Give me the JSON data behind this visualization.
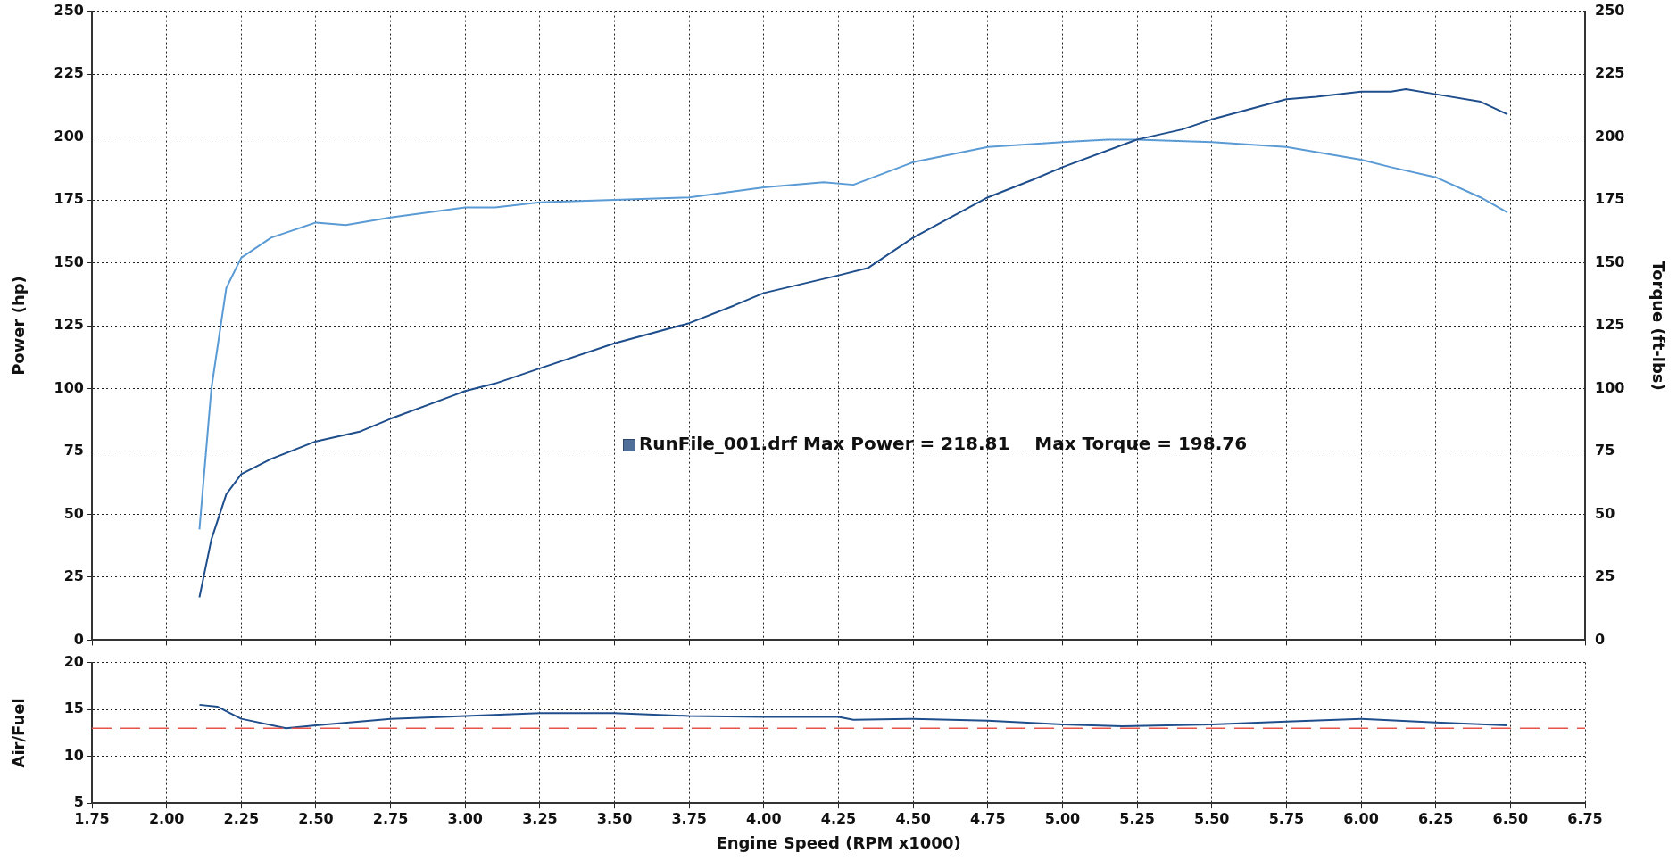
{
  "chart_data": [
    {
      "type": "line",
      "ylabel": "Power (hp)",
      "y2label": "Torque (ft-lbs)",
      "xlim": [
        1.75,
        6.75
      ],
      "xticks": [
        1.75,
        2,
        2.25,
        2.5,
        2.75,
        3,
        3.25,
        3.5,
        3.75,
        4,
        4.25,
        4.5,
        4.75,
        5,
        5.25,
        5.5,
        5.75,
        6,
        6.25,
        6.5,
        6.75
      ],
      "ylim": [
        0,
        250
      ],
      "yticks": [
        0,
        25,
        50,
        75,
        100,
        125,
        150,
        175,
        200,
        225,
        250
      ],
      "y2lim": [
        0,
        250
      ],
      "y2ticks": [
        0,
        25,
        50,
        75,
        100,
        125,
        150,
        175,
        200,
        225,
        250
      ],
      "tick_labels": "y",
      "grid": true,
      "legend": false,
      "marker": "none",
      "line_style": "solid",
      "series": [
        {
          "color": "#1f4e8c",
          "x": [
            2.11,
            2.15,
            2.2,
            2.25,
            2.35,
            2.5,
            2.65,
            2.75,
            3.0,
            3.1,
            3.25,
            3.5,
            3.75,
            3.9,
            4.0,
            4.25,
            4.35,
            4.5,
            4.75,
            4.9,
            5.0,
            5.25,
            5.4,
            5.5,
            5.75,
            5.85,
            6.0,
            6.1,
            6.15,
            6.25,
            6.4,
            6.49
          ],
          "values": [
            17,
            40,
            58,
            66,
            72,
            79,
            83,
            88,
            99,
            102,
            108,
            118,
            126,
            133,
            138,
            145,
            148,
            160,
            176,
            183,
            188,
            199,
            203,
            207,
            215,
            216,
            218,
            218,
            219,
            217,
            214,
            209
          ]
        },
        {
          "color": "#5b9bd5",
          "axis": "y2",
          "x": [
            2.11,
            2.15,
            2.2,
            2.25,
            2.35,
            2.5,
            2.6,
            2.75,
            3.0,
            3.1,
            3.25,
            3.5,
            3.75,
            4.0,
            4.2,
            4.3,
            4.5,
            4.75,
            5.0,
            5.15,
            5.25,
            5.5,
            5.75,
            6.0,
            6.1,
            6.25,
            6.4,
            6.49
          ],
          "values": [
            44,
            100,
            140,
            152,
            160,
            166,
            165,
            168,
            172,
            172,
            174,
            175,
            176,
            180,
            182,
            181,
            190,
            196,
            198,
            199,
            199,
            198,
            196,
            191,
            188,
            184,
            176,
            170
          ]
        }
      ],
      "annotations": [
        "RunFile_001.drf Max Power = 218.81    Max Torque = 198.76"
      ]
    },
    {
      "type": "line",
      "xlabel": "Engine Speed (RPM x1000)",
      "ylabel": "Air/Fuel",
      "xlim": [
        1.75,
        6.75
      ],
      "xticks": [
        {
          "value": 1.75,
          "label": "1.75"
        },
        {
          "value": 2,
          "label": "2.00"
        },
        {
          "value": 2.25,
          "label": "2.25"
        },
        {
          "value": 2.5,
          "label": "2.50"
        },
        {
          "value": 2.75,
          "label": "2.75"
        },
        {
          "value": 3,
          "label": "3.00"
        },
        {
          "value": 3.25,
          "label": "3.25"
        },
        {
          "value": 3.5,
          "label": "3.50"
        },
        {
          "value": 3.75,
          "label": "3.75"
        },
        {
          "value": 4,
          "label": "4.00"
        },
        {
          "value": 4.25,
          "label": "4.25"
        },
        {
          "value": 4.5,
          "label": "4.50"
        },
        {
          "value": 4.75,
          "label": "4.75"
        },
        {
          "value": 5,
          "label": "5.00"
        },
        {
          "value": 5.25,
          "label": "5.25"
        },
        {
          "value": 5.5,
          "label": "5.50"
        },
        {
          "value": 5.75,
          "label": "5.75"
        },
        {
          "value": 6,
          "label": "6.00"
        },
        {
          "value": 6.25,
          "label": "6.25"
        },
        {
          "value": 6.5,
          "label": "6.50"
        },
        {
          "value": 6.75,
          "label": "6.75"
        }
      ],
      "ylim": [
        5,
        20
      ],
      "yticks": [
        5,
        10,
        15,
        20
      ],
      "grid": true,
      "legend": false,
      "marker": "none",
      "line_style": "solid",
      "series": [
        {
          "color": "#1f4e8c",
          "x": [
            2.11,
            2.17,
            2.25,
            2.4,
            2.5,
            2.75,
            3.0,
            3.25,
            3.5,
            3.75,
            4.0,
            4.25,
            4.3,
            4.5,
            4.75,
            5.0,
            5.2,
            5.5,
            5.75,
            6.0,
            6.25,
            6.49
          ],
          "values": [
            15.5,
            15.3,
            14.0,
            13.0,
            13.3,
            14.0,
            14.3,
            14.6,
            14.6,
            14.3,
            14.2,
            14.2,
            13.9,
            14.0,
            13.8,
            13.4,
            13.2,
            13.4,
            13.7,
            14.0,
            13.6,
            13.3
          ]
        }
      ],
      "ref_lines": [
        {
          "axis": "y",
          "value": 13,
          "color": "#e8534a",
          "line_style": "dashed"
        }
      ]
    }
  ]
}
